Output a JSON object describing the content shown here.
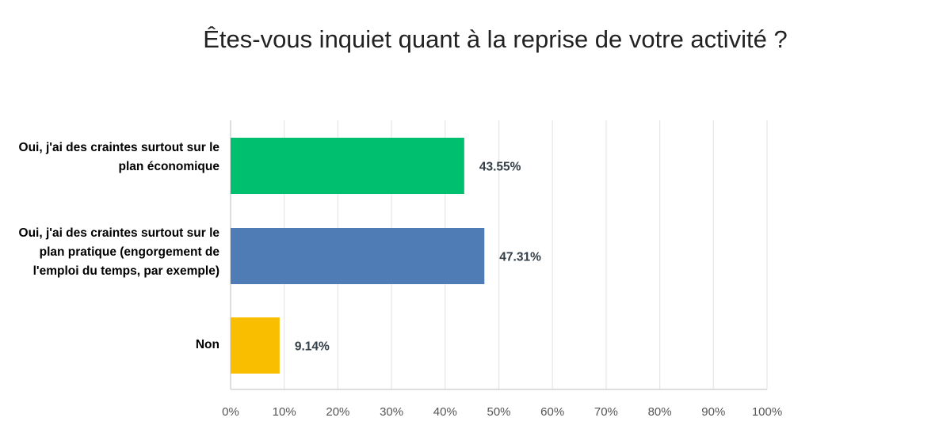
{
  "chart_data": {
    "type": "bar",
    "orientation": "horizontal",
    "title": "Êtes-vous inquiet quant à la reprise de votre activité ?",
    "categories": [
      "Oui, j'ai des craintes surtout sur le plan économique",
      "Oui, j'ai des craintes surtout sur le plan pratique (engorgement de l'emploi du temps, par exemple)",
      "Non"
    ],
    "values": [
      43.55,
      47.31,
      9.14
    ],
    "value_labels": [
      "43.55%",
      "47.31%",
      "9.14%"
    ],
    "colors": [
      "#00bf6f",
      "#507cb6",
      "#f9be00"
    ],
    "xlim": [
      0,
      100
    ],
    "ticks": [
      0,
      10,
      20,
      30,
      40,
      50,
      60,
      70,
      80,
      90,
      100
    ],
    "tick_labels": [
      "0%",
      "10%",
      "20%",
      "30%",
      "40%",
      "50%",
      "60%",
      "70%",
      "80%",
      "90%",
      "100%"
    ],
    "grid": true,
    "legend": "none"
  }
}
